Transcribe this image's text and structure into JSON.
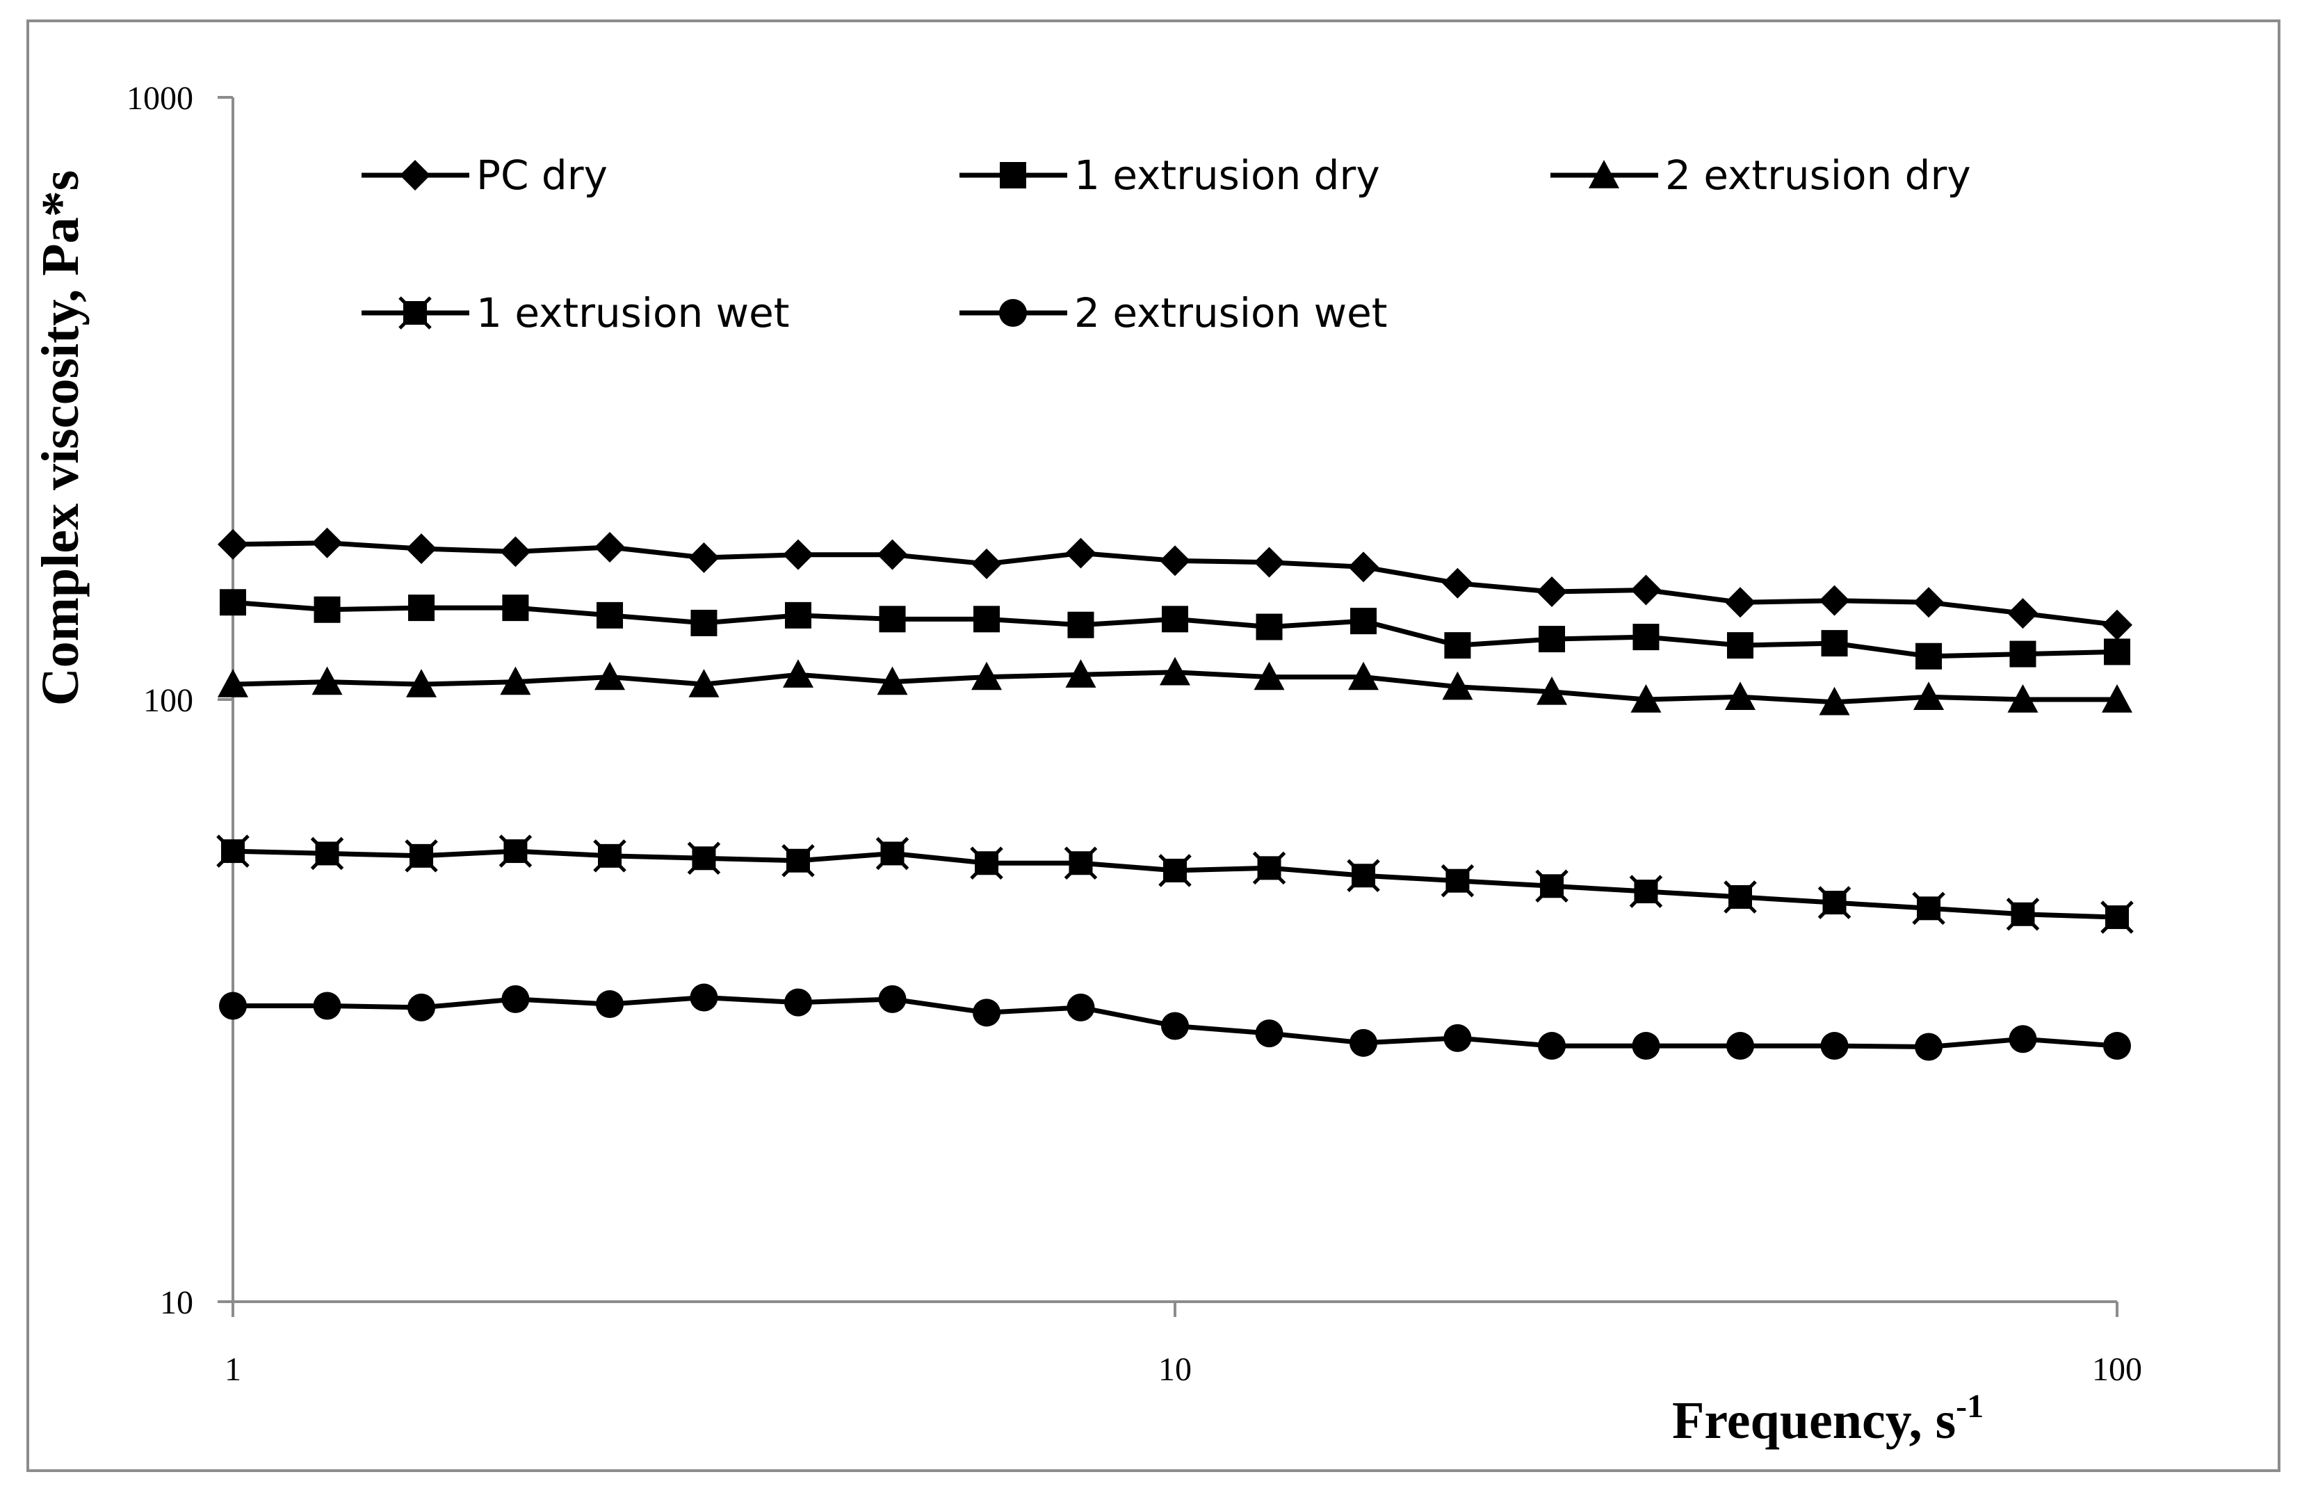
{
  "chart_data": {
    "type": "line",
    "title": "",
    "xlabel": "Frequency, s",
    "xlabel_superscript": "-1",
    "ylabel": "Complex viscosity,  Pa*s",
    "xscale": "log",
    "yscale": "log",
    "xlim": [
      1,
      100
    ],
    "ylim": [
      10,
      1000
    ],
    "xticks": [
      1,
      10,
      100
    ],
    "xtick_labels": [
      "1",
      "10",
      "100"
    ],
    "yticks": [
      10,
      100,
      1000
    ],
    "ytick_labels": [
      "10",
      "100",
      "1000"
    ],
    "grid": false,
    "legend_position": "top-left, inside plot, 2 rows",
    "x": [
      1,
      1.259,
      1.585,
      1.995,
      2.512,
      3.162,
      3.981,
      5.012,
      6.31,
      7.943,
      10,
      12.59,
      15.85,
      19.95,
      25.12,
      31.62,
      39.81,
      50.12,
      63.1,
      79.43,
      100
    ],
    "series": [
      {
        "name": "PC dry",
        "marker": "diamond",
        "values": [
          181,
          182,
          178,
          176,
          179,
          172,
          174,
          174,
          168,
          175,
          170,
          169,
          166,
          156,
          151,
          152,
          145,
          146,
          145,
          139,
          133
        ]
      },
      {
        "name": "1 extrusion dry",
        "marker": "square",
        "values": [
          145,
          141,
          142,
          142,
          138,
          134,
          138,
          136,
          136,
          133,
          136,
          132,
          135,
          123,
          126,
          127,
          123,
          124,
          118,
          119,
          120
        ]
      },
      {
        "name": "2 extrusion dry",
        "marker": "triangle",
        "values": [
          106,
          107,
          106,
          107,
          109,
          106,
          110,
          107,
          109,
          110,
          111,
          109,
          109,
          105,
          103,
          100,
          101,
          99,
          101,
          100,
          100
        ]
      },
      {
        "name": "1 extrusion wet",
        "marker": "bowtie-square",
        "values": [
          56,
          55.5,
          55,
          56,
          55,
          54.5,
          54,
          55.5,
          53.5,
          53.5,
          52,
          52.5,
          51,
          50,
          49,
          48,
          47,
          46,
          45,
          44,
          43.5
        ]
      },
      {
        "name": "2 extrusion wet",
        "marker": "circle",
        "values": [
          31,
          31,
          30.8,
          31.8,
          31.2,
          32,
          31.4,
          31.8,
          30.2,
          30.8,
          28.7,
          27.9,
          26.9,
          27.4,
          26.6,
          26.6,
          26.6,
          26.6,
          26.5,
          27.3,
          26.6
        ]
      }
    ]
  }
}
